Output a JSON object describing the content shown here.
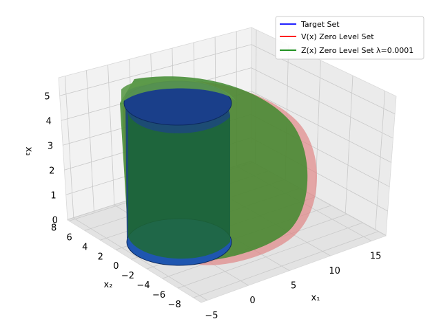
{
  "chart_data": {
    "type": "3d-surface",
    "title": "",
    "axes": {
      "x": {
        "label": "x₁",
        "ticks": [
          "−5",
          "0",
          "5",
          "10",
          "15"
        ]
      },
      "y": {
        "label": "x₂",
        "ticks": [
          "8",
          "6",
          "4",
          "2",
          "0",
          "−2",
          "−4",
          "−6",
          "−8"
        ]
      },
      "z": {
        "label": "x₃",
        "ticks": [
          "0",
          "1",
          "2",
          "3",
          "4",
          "5"
        ]
      }
    },
    "grid": true,
    "legend_position": "top-right",
    "series": [
      {
        "name": "Target Set",
        "color": "#0000ff",
        "surface": "cylinder"
      },
      {
        "name": "V(x) Zero Level Set",
        "color": "#ff0000",
        "surface": "extended-cylinder"
      },
      {
        "name": "Z(x) Zero Level Set λ=0.0001",
        "color": "#008000",
        "surface": "extended-cylinder"
      }
    ]
  }
}
